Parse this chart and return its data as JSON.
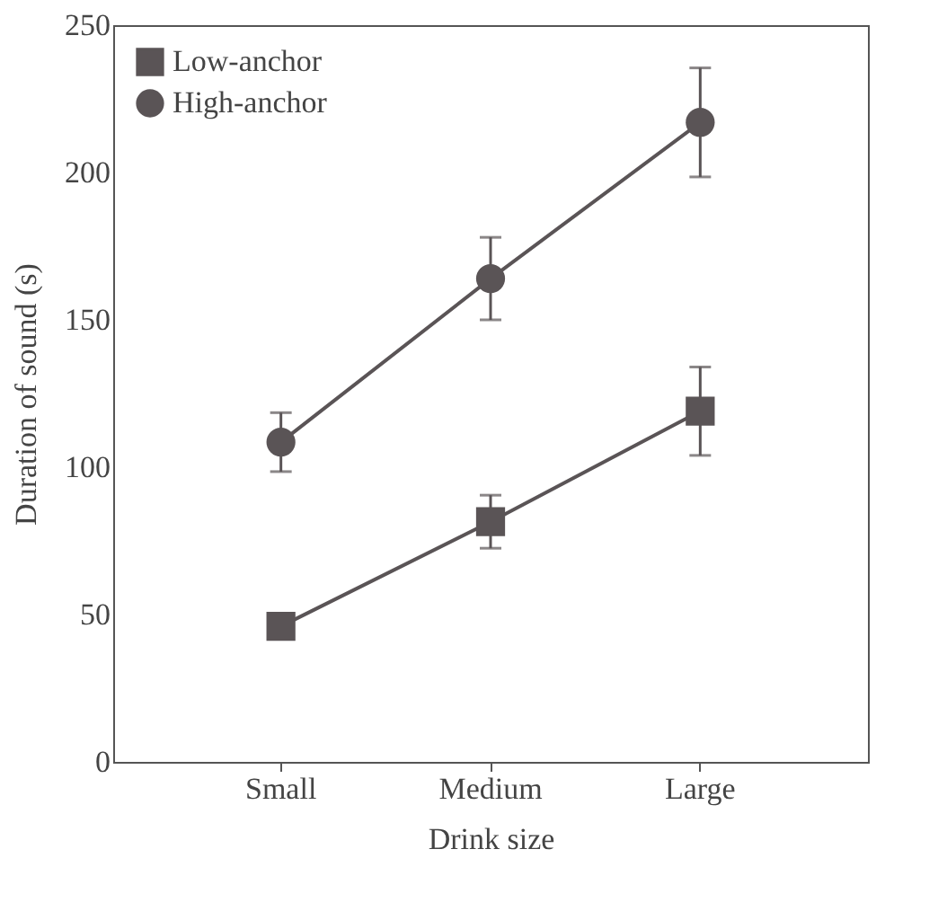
{
  "chart_data": {
    "type": "line",
    "xlabel": "Drink size",
    "ylabel": "Duration of sound (s)",
    "categories": [
      "Small",
      "Medium",
      "Large"
    ],
    "series": [
      {
        "name": "Low-anchor",
        "color": "#5a5456",
        "marker": "square",
        "values": [
          46,
          81.5,
          119
        ],
        "errors": [
          3,
          9,
          15
        ]
      },
      {
        "name": "High-anchor",
        "color": "#5a5456",
        "marker": "circle",
        "values": [
          108.5,
          164,
          217
        ],
        "errors": [
          10,
          14,
          18.5
        ]
      }
    ],
    "ylim": [
      0,
      250
    ],
    "yticks": [
      0,
      50,
      100,
      150,
      200,
      250
    ],
    "grid": false,
    "legend": "top left",
    "line_style": "solid"
  }
}
